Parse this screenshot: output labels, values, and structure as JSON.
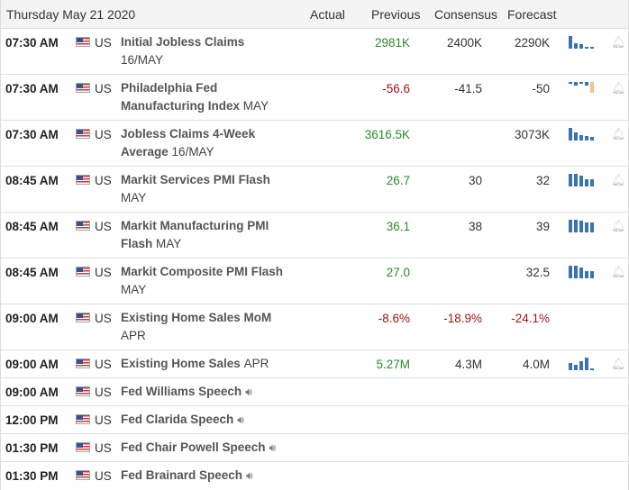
{
  "header": {
    "date": "Thursday May 21 2020",
    "col_actual": "Actual",
    "col_previous": "Previous",
    "col_consensus": "Consensus",
    "col_forecast": "Forecast"
  },
  "rows": [
    {
      "time": "07:30 AM",
      "country": "US",
      "event": "Initial Jobless Claims",
      "period": "16/MAY",
      "previous": "2981K",
      "consensus": "2400K",
      "forecast": "2290K"
    },
    {
      "time": "07:30 AM",
      "country": "US",
      "event": "Philadelphia Fed Manufacturing Index",
      "period": "MAY",
      "previous": "-56.6",
      "consensus": "-41.5",
      "forecast": "-50"
    },
    {
      "time": "07:30 AM",
      "country": "US",
      "event": "Jobless Claims 4-Week Average",
      "period": "16/MAY",
      "previous": "3616.5K",
      "consensus": "",
      "forecast": "3073K"
    },
    {
      "time": "08:45 AM",
      "country": "US",
      "event": "Markit Services PMI Flash",
      "period": "MAY",
      "previous": "26.7",
      "consensus": "30",
      "forecast": "32"
    },
    {
      "time": "08:45 AM",
      "country": "US",
      "event": "Markit Manufacturing PMI Flash",
      "period": "MAY",
      "previous": "36.1",
      "consensus": "38",
      "forecast": "39"
    },
    {
      "time": "08:45 AM",
      "country": "US",
      "event": "Markit Composite PMI Flash",
      "period": "MAY",
      "previous": "27.0",
      "consensus": "",
      "forecast": "32.5"
    },
    {
      "time": "09:00 AM",
      "country": "US",
      "event": "Existing Home Sales MoM",
      "period": "APR",
      "previous": "-8.6%",
      "consensus": "-18.9%",
      "forecast": "-24.1%"
    },
    {
      "time": "09:00 AM",
      "country": "US",
      "event": "Existing Home Sales",
      "period": "APR",
      "previous": "5.27M",
      "consensus": "4.3M",
      "forecast": "4.0M"
    },
    {
      "time": "09:00 AM",
      "country": "US",
      "event": "Fed Williams Speech"
    },
    {
      "time": "12:00 PM",
      "country": "US",
      "event": "Fed Clarida Speech"
    },
    {
      "time": "01:30 PM",
      "country": "US",
      "event": "Fed Chair Powell Speech"
    },
    {
      "time": "01:30 PM",
      "country": "US",
      "event": "Fed Brainard Speech"
    }
  ],
  "colors": {
    "positive": "#2a8a2a",
    "negative": "#a01414",
    "bar": "#3a73b0",
    "bar_highlight": "#f5c08a"
  },
  "icons": {
    "flag": "us-flag-icon",
    "chart": "mini-bar-chart-icon",
    "alert": "bell-icon",
    "audio": "speaker-icon"
  }
}
